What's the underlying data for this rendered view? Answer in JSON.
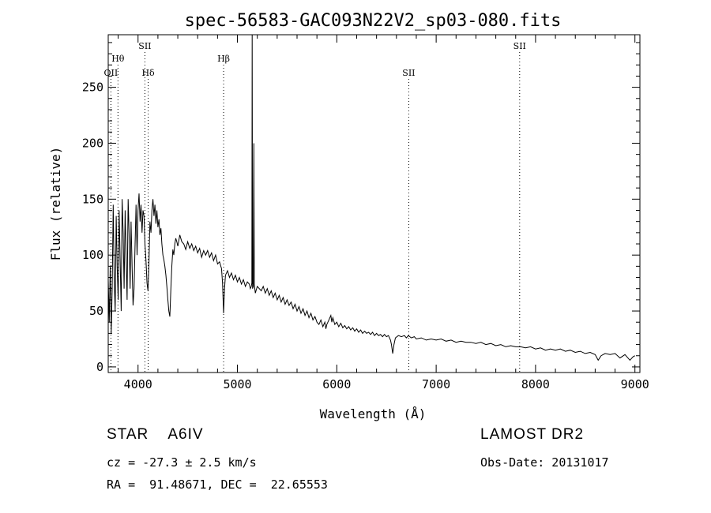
{
  "chart_data": {
    "type": "line",
    "title": "spec-56583-GAC093N22V2_sp03-080.fits",
    "xlabel": "Wavelength (Å)",
    "ylabel": "Flux (relative)",
    "xlim": [
      3700,
      9050
    ],
    "ylim": [
      -5,
      297
    ],
    "xticks": [
      4000,
      5000,
      6000,
      7000,
      8000,
      9000
    ],
    "yticks": [
      0,
      50,
      100,
      150,
      200,
      250
    ],
    "line_markers": [
      {
        "label": "OII",
        "x": 3727,
        "row": 3
      },
      {
        "label": "Hθ",
        "x": 3798,
        "row": 2
      },
      {
        "label": "SII",
        "x": 4069,
        "row": 1
      },
      {
        "label": "Hδ",
        "x": 4102,
        "row": 3
      },
      {
        "label": "Hβ",
        "x": 4861,
        "row": 2
      },
      {
        "label": "SII",
        "x": 6724,
        "row": 3
      },
      {
        "label": "SII",
        "x": 7840,
        "row": 1
      }
    ],
    "series": [
      {
        "values": [
          [
            3700,
            78
          ],
          [
            3710,
            40
          ],
          [
            3720,
            90
          ],
          [
            3730,
            30
          ],
          [
            3740,
            70
          ],
          [
            3750,
            145
          ],
          [
            3760,
            80
          ],
          [
            3770,
            50
          ],
          [
            3780,
            135
          ],
          [
            3790,
            90
          ],
          [
            3800,
            60
          ],
          [
            3810,
            140
          ],
          [
            3820,
            95
          ],
          [
            3830,
            50
          ],
          [
            3840,
            150
          ],
          [
            3850,
            120
          ],
          [
            3860,
            70
          ],
          [
            3870,
            140
          ],
          [
            3880,
            100
          ],
          [
            3890,
            60
          ],
          [
            3900,
            150
          ],
          [
            3910,
            120
          ],
          [
            3920,
            70
          ],
          [
            3930,
            130
          ],
          [
            3940,
            90
          ],
          [
            3950,
            55
          ],
          [
            3960,
            70
          ],
          [
            3970,
            110
          ],
          [
            3980,
            145
          ],
          [
            3990,
            100
          ],
          [
            4000,
            140
          ],
          [
            4010,
            155
          ],
          [
            4020,
            130
          ],
          [
            4030,
            145
          ],
          [
            4040,
            120
          ],
          [
            4050,
            140
          ],
          [
            4060,
            135
          ],
          [
            4070,
            110
          ],
          [
            4080,
            95
          ],
          [
            4090,
            75
          ],
          [
            4100,
            68
          ],
          [
            4110,
            95
          ],
          [
            4120,
            130
          ],
          [
            4130,
            120
          ],
          [
            4140,
            140
          ],
          [
            4150,
            150
          ],
          [
            4160,
            135
          ],
          [
            4170,
            145
          ],
          [
            4180,
            128
          ],
          [
            4190,
            140
          ],
          [
            4200,
            125
          ],
          [
            4210,
            132
          ],
          [
            4220,
            118
          ],
          [
            4230,
            124
          ],
          [
            4240,
            110
          ],
          [
            4250,
            100
          ],
          [
            4260,
            96
          ],
          [
            4270,
            90
          ],
          [
            4280,
            82
          ],
          [
            4290,
            72
          ],
          [
            4300,
            60
          ],
          [
            4310,
            50
          ],
          [
            4320,
            45
          ],
          [
            4330,
            70
          ],
          [
            4340,
            90
          ],
          [
            4350,
            105
          ],
          [
            4360,
            100
          ],
          [
            4370,
            110
          ],
          [
            4380,
            115
          ],
          [
            4390,
            112
          ],
          [
            4400,
            108
          ],
          [
            4420,
            118
          ],
          [
            4440,
            112
          ],
          [
            4460,
            110
          ],
          [
            4480,
            105
          ],
          [
            4500,
            112
          ],
          [
            4520,
            106
          ],
          [
            4540,
            110
          ],
          [
            4560,
            104
          ],
          [
            4580,
            108
          ],
          [
            4600,
            102
          ],
          [
            4620,
            106
          ],
          [
            4640,
            98
          ],
          [
            4660,
            104
          ],
          [
            4680,
            100
          ],
          [
            4700,
            104
          ],
          [
            4720,
            98
          ],
          [
            4740,
            102
          ],
          [
            4760,
            95
          ],
          [
            4780,
            100
          ],
          [
            4800,
            92
          ],
          [
            4820,
            94
          ],
          [
            4840,
            88
          ],
          [
            4850,
            75
          ],
          [
            4861,
            48
          ],
          [
            4870,
            70
          ],
          [
            4880,
            82
          ],
          [
            4900,
            86
          ],
          [
            4920,
            80
          ],
          [
            4940,
            84
          ],
          [
            4960,
            78
          ],
          [
            4980,
            82
          ],
          [
            5000,
            76
          ],
          [
            5020,
            80
          ],
          [
            5040,
            74
          ],
          [
            5060,
            78
          ],
          [
            5080,
            72
          ],
          [
            5100,
            76
          ],
          [
            5120,
            74
          ],
          [
            5130,
            70
          ],
          [
            5140,
            72
          ],
          [
            5145,
            75
          ],
          [
            5148,
            300
          ],
          [
            5152,
            70
          ],
          [
            5160,
            72
          ],
          [
            5165,
            200
          ],
          [
            5170,
            74
          ],
          [
            5180,
            66
          ],
          [
            5200,
            72
          ],
          [
            5220,
            70
          ],
          [
            5240,
            68
          ],
          [
            5260,
            72
          ],
          [
            5280,
            66
          ],
          [
            5300,
            70
          ],
          [
            5320,
            64
          ],
          [
            5340,
            68
          ],
          [
            5360,
            62
          ],
          [
            5380,
            66
          ],
          [
            5400,
            60
          ],
          [
            5420,
            64
          ],
          [
            5440,
            58
          ],
          [
            5460,
            62
          ],
          [
            5480,
            56
          ],
          [
            5500,
            60
          ],
          [
            5520,
            55
          ],
          [
            5540,
            58
          ],
          [
            5560,
            52
          ],
          [
            5580,
            56
          ],
          [
            5600,
            50
          ],
          [
            5620,
            54
          ],
          [
            5640,
            48
          ],
          [
            5660,
            52
          ],
          [
            5680,
            46
          ],
          [
            5700,
            50
          ],
          [
            5720,
            44
          ],
          [
            5740,
            48
          ],
          [
            5760,
            42
          ],
          [
            5780,
            45
          ],
          [
            5800,
            40
          ],
          [
            5820,
            38
          ],
          [
            5840,
            42
          ],
          [
            5860,
            36
          ],
          [
            5880,
            40
          ],
          [
            5890,
            34
          ],
          [
            5900,
            38
          ],
          [
            5920,
            42
          ],
          [
            5940,
            46
          ],
          [
            5950,
            40
          ],
          [
            5960,
            44
          ],
          [
            5980,
            38
          ],
          [
            6000,
            40
          ],
          [
            6020,
            36
          ],
          [
            6040,
            39
          ],
          [
            6060,
            35
          ],
          [
            6080,
            37
          ],
          [
            6100,
            34
          ],
          [
            6120,
            36
          ],
          [
            6140,
            33
          ],
          [
            6160,
            35
          ],
          [
            6180,
            32
          ],
          [
            6200,
            34
          ],
          [
            6220,
            31
          ],
          [
            6240,
            33
          ],
          [
            6260,
            30
          ],
          [
            6280,
            32
          ],
          [
            6300,
            30
          ],
          [
            6320,
            31
          ],
          [
            6340,
            29
          ],
          [
            6360,
            31
          ],
          [
            6380,
            28
          ],
          [
            6400,
            30
          ],
          [
            6420,
            28
          ],
          [
            6440,
            29
          ],
          [
            6460,
            27
          ],
          [
            6480,
            29
          ],
          [
            6500,
            27
          ],
          [
            6520,
            28
          ],
          [
            6540,
            24
          ],
          [
            6550,
            20
          ],
          [
            6563,
            12
          ],
          [
            6575,
            20
          ],
          [
            6590,
            26
          ],
          [
            6620,
            28
          ],
          [
            6650,
            27
          ],
          [
            6680,
            28
          ],
          [
            6700,
            26
          ],
          [
            6720,
            28
          ],
          [
            6750,
            26
          ],
          [
            6780,
            27
          ],
          [
            6800,
            25
          ],
          [
            6850,
            26
          ],
          [
            6900,
            24
          ],
          [
            6950,
            25
          ],
          [
            7000,
            24
          ],
          [
            7050,
            25
          ],
          [
            7100,
            23
          ],
          [
            7150,
            24
          ],
          [
            7200,
            22
          ],
          [
            7250,
            23
          ],
          [
            7300,
            22
          ],
          [
            7350,
            22
          ],
          [
            7400,
            21
          ],
          [
            7450,
            22
          ],
          [
            7500,
            20
          ],
          [
            7550,
            21
          ],
          [
            7600,
            19
          ],
          [
            7650,
            20
          ],
          [
            7700,
            18
          ],
          [
            7750,
            19
          ],
          [
            7800,
            18
          ],
          [
            7850,
            18
          ],
          [
            7900,
            17
          ],
          [
            7950,
            18
          ],
          [
            8000,
            16
          ],
          [
            8050,
            17
          ],
          [
            8100,
            15
          ],
          [
            8150,
            16
          ],
          [
            8200,
            15
          ],
          [
            8250,
            16
          ],
          [
            8300,
            14
          ],
          [
            8350,
            15
          ],
          [
            8400,
            13
          ],
          [
            8450,
            14
          ],
          [
            8500,
            12
          ],
          [
            8550,
            13
          ],
          [
            8600,
            11
          ],
          [
            8630,
            6
          ],
          [
            8660,
            10
          ],
          [
            8700,
            12
          ],
          [
            8750,
            11
          ],
          [
            8800,
            12
          ],
          [
            8850,
            8
          ],
          [
            8900,
            11
          ],
          [
            8950,
            6
          ],
          [
            8980,
            9
          ],
          [
            9000,
            10
          ]
        ]
      }
    ]
  },
  "info": {
    "star_line": "STAR    A6IV",
    "survey": "LAMOST DR2",
    "cz_line": "cz = -27.3 ± 2.5 km/s",
    "obs_date": "Obs-Date: 20131017",
    "radec_line": "RA =  91.48671, DEC =  22.65553"
  }
}
